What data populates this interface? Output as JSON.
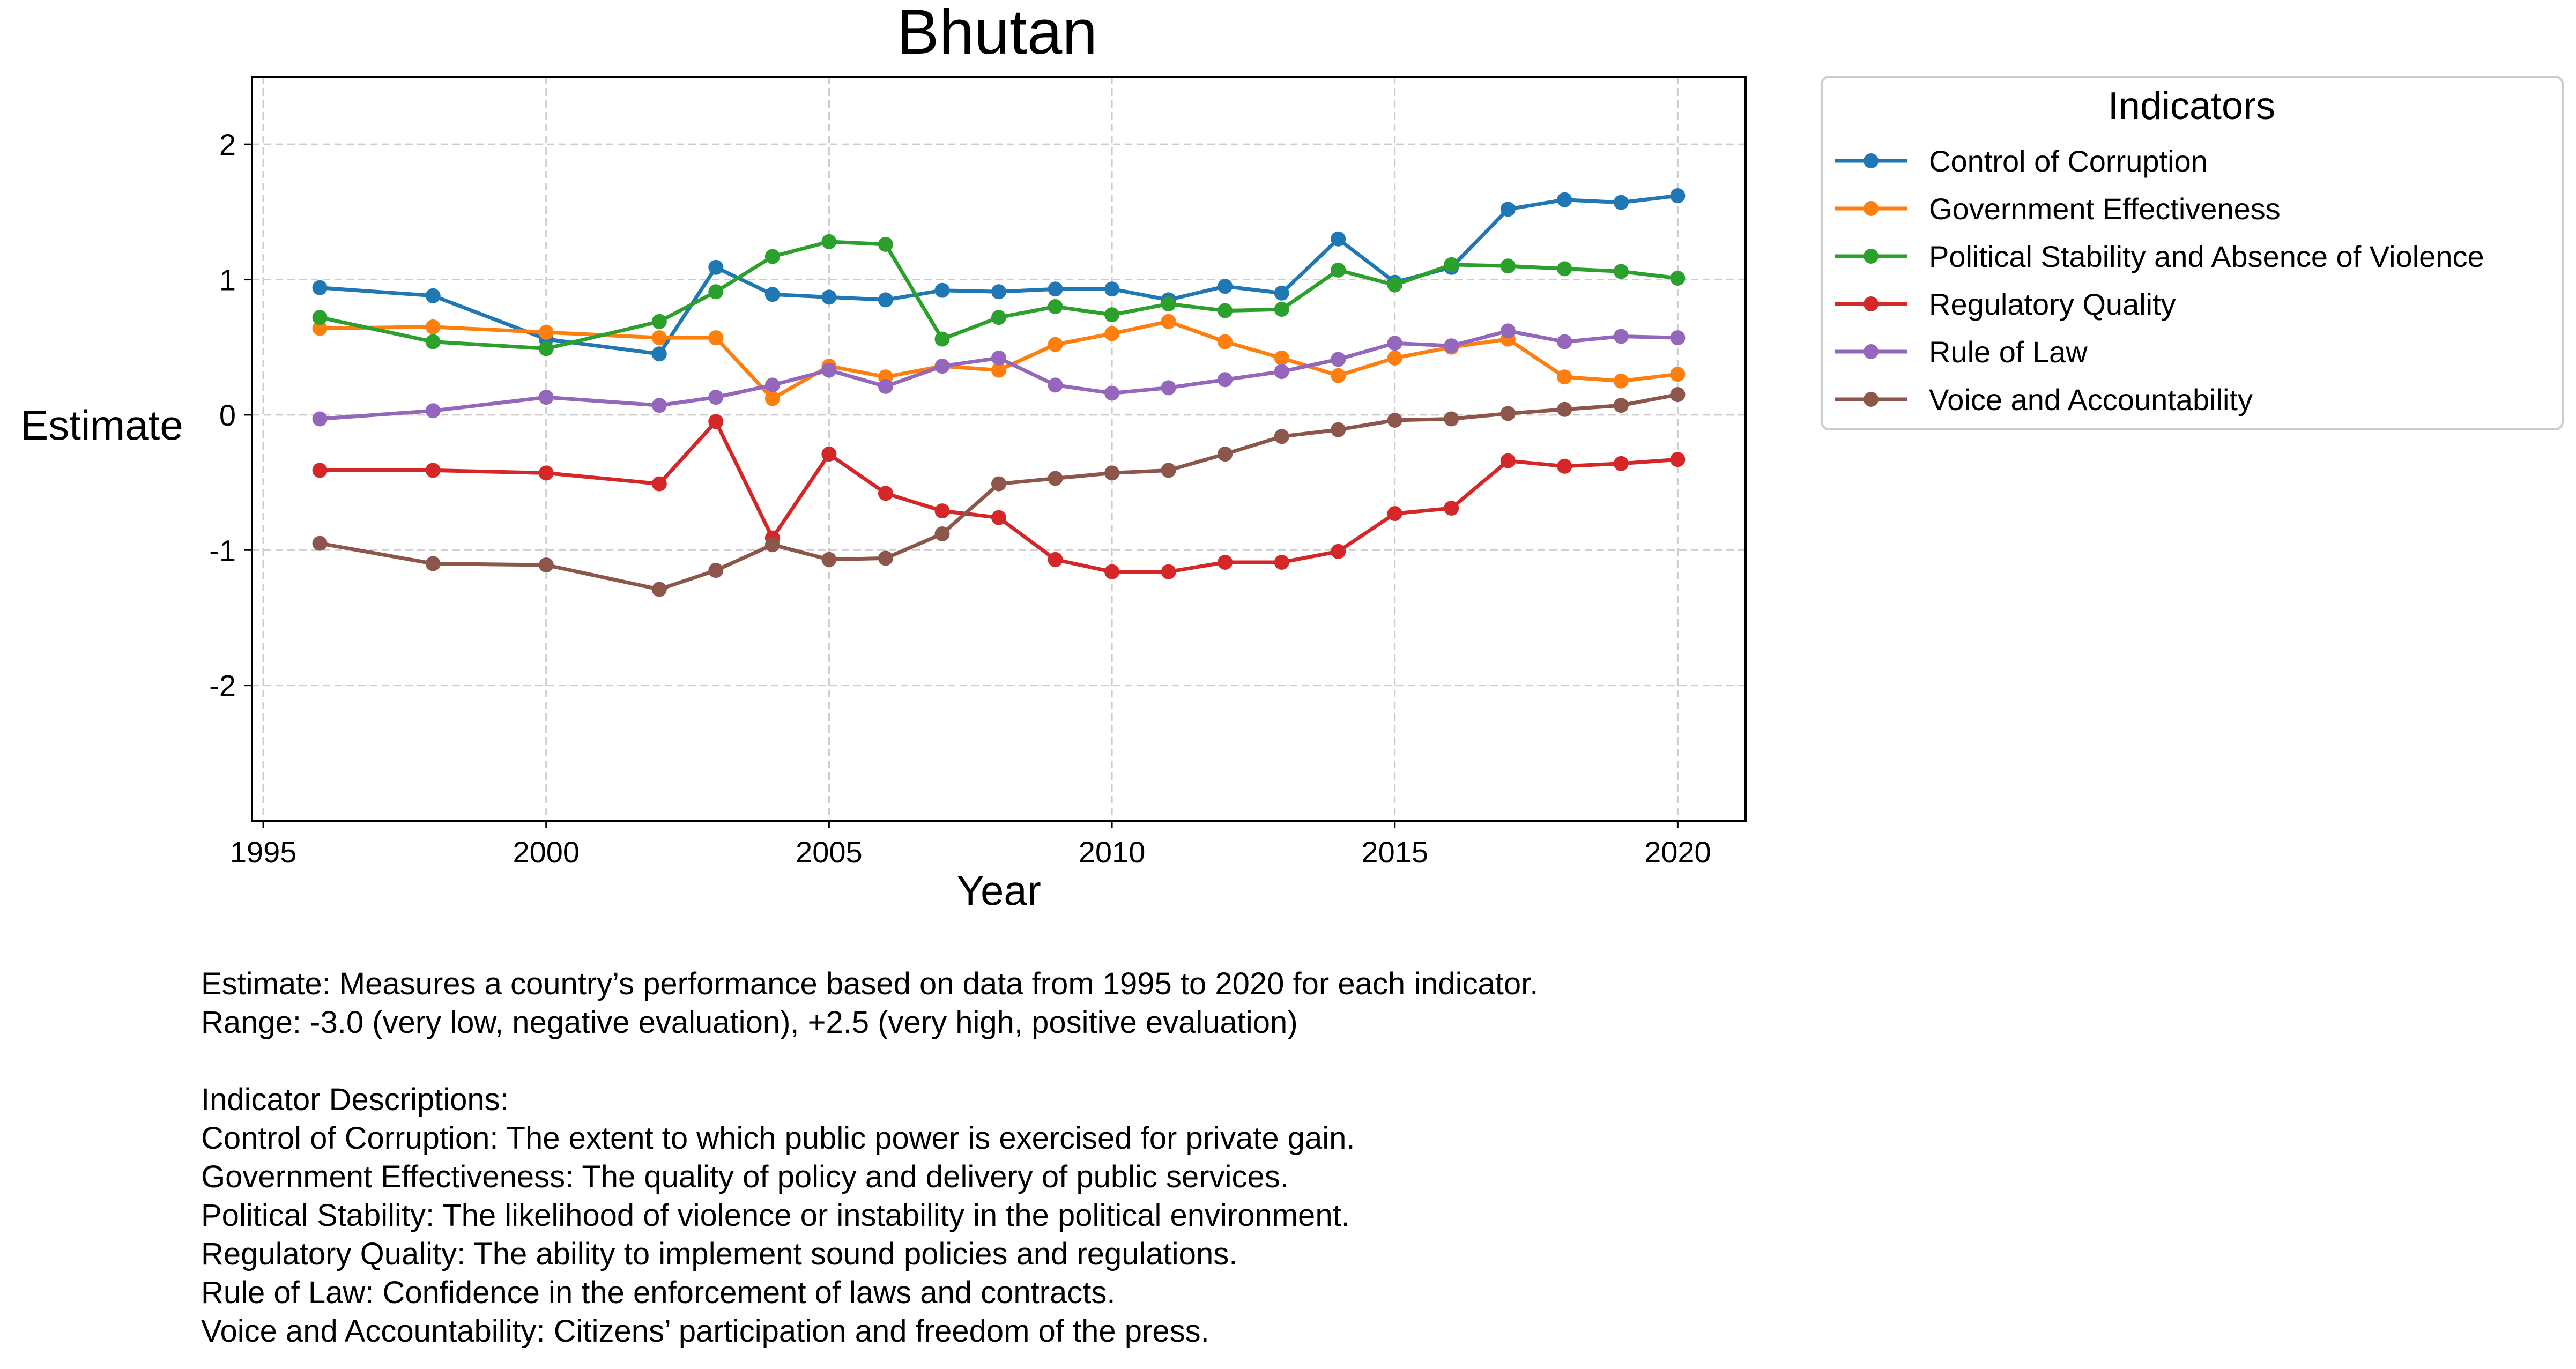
{
  "chart_data": {
    "type": "line",
    "title": "Bhutan",
    "xlabel": "Year",
    "ylabel": "Estimate",
    "xlim": [
      1994.8,
      2021.2
    ],
    "ylim": [
      -3.0,
      2.5
    ],
    "xticks": [
      1995,
      2000,
      2005,
      2010,
      2015,
      2020
    ],
    "yticks": [
      2,
      1,
      0,
      -1,
      -2
    ],
    "grid": true,
    "legend": {
      "title": "Indicators",
      "placement": "outside-top-right"
    },
    "x": [
      1996,
      1998,
      2000,
      2002,
      2003,
      2004,
      2005,
      2006,
      2007,
      2008,
      2009,
      2010,
      2011,
      2012,
      2013,
      2014,
      2015,
      2016,
      2017,
      2018,
      2019,
      2020
    ],
    "series": [
      {
        "name": "Control of Corruption",
        "color": "#1f77b4",
        "values": [
          0.94,
          0.88,
          0.56,
          0.45,
          1.09,
          0.89,
          0.87,
          0.85,
          0.92,
          0.91,
          0.93,
          0.93,
          0.85,
          0.95,
          0.9,
          1.3,
          0.98,
          1.09,
          1.52,
          1.59,
          1.57,
          1.62
        ]
      },
      {
        "name": "Government Effectiveness",
        "color": "#ff7f0e",
        "values": [
          0.64,
          0.65,
          0.61,
          0.57,
          0.57,
          0.12,
          0.36,
          0.28,
          0.36,
          0.33,
          0.52,
          0.6,
          0.69,
          0.54,
          0.42,
          0.29,
          0.42,
          0.5,
          0.56,
          0.28,
          0.25,
          0.3
        ]
      },
      {
        "name": "Political Stability and Absence of Violence",
        "color": "#2ca02c",
        "values": [
          0.72,
          0.54,
          0.49,
          0.69,
          0.91,
          1.17,
          1.28,
          1.26,
          0.56,
          0.72,
          0.8,
          0.74,
          0.82,
          0.77,
          0.78,
          1.07,
          0.96,
          1.11,
          1.1,
          1.08,
          1.06,
          1.01
        ]
      },
      {
        "name": "Regulatory Quality",
        "color": "#d62728",
        "values": [
          -0.41,
          -0.41,
          -0.43,
          -0.51,
          -0.05,
          -0.91,
          -0.29,
          -0.58,
          -0.71,
          -0.76,
          -1.07,
          -1.16,
          -1.16,
          -1.09,
          -1.09,
          -1.01,
          -0.73,
          -0.69,
          -0.34,
          -0.38,
          -0.36,
          -0.33
        ]
      },
      {
        "name": "Rule of Law",
        "color": "#9467bd",
        "values": [
          -0.03,
          0.03,
          0.13,
          0.07,
          0.13,
          0.22,
          0.33,
          0.21,
          0.36,
          0.42,
          0.22,
          0.16,
          0.2,
          0.26,
          0.32,
          0.41,
          0.53,
          0.51,
          0.62,
          0.54,
          0.58,
          0.57
        ]
      },
      {
        "name": "Voice and Accountability",
        "color": "#8c564b",
        "values": [
          -0.95,
          -1.1,
          -1.11,
          -1.29,
          -1.15,
          -0.96,
          -1.07,
          -1.06,
          -0.88,
          -0.51,
          -0.47,
          -0.43,
          -0.41,
          -0.29,
          -0.16,
          -0.11,
          -0.04,
          -0.03,
          0.01,
          0.04,
          0.07,
          0.15
        ]
      }
    ]
  },
  "notes": [
    "Estimate: Measures a country’s performance based on data from 1995 to 2020 for each indicator.",
    "Range: -3.0 (very low, negative evaluation), +2.5 (very high, positive evaluation)",
    "",
    "Indicator Descriptions:",
    "Control of Corruption: The extent to which public power is exercised for private gain.",
    "Government Effectiveness: The quality of policy and delivery of public services.",
    "Political Stability: The likelihood of violence or instability in the political environment.",
    "Regulatory Quality: The ability to implement sound policies and regulations.",
    "Rule of Law: Confidence in the enforcement of laws and contracts.",
    "Voice and Accountability: Citizens’ participation and freedom of the press."
  ]
}
